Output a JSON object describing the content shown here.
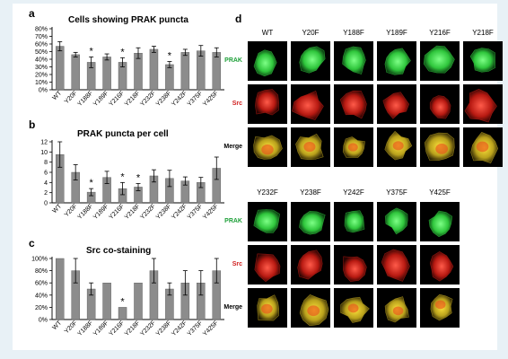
{
  "panels": {
    "a": "a",
    "b": "b",
    "c": "c",
    "d": "d"
  },
  "colors": {
    "bar": "#8c8c8c",
    "prak_label": "#1fa03a",
    "src_label": "#d01d1d",
    "merge_label": "#000000"
  },
  "chart_data": [
    {
      "type": "bar",
      "title": "Cells showing PRAK puncta",
      "categories": [
        "WT",
        "Y20F",
        "Y188F",
        "Y189F",
        "Y216F",
        "Y218F",
        "Y232F",
        "Y238F",
        "Y242F",
        "Y375F",
        "Y425F"
      ],
      "values": [
        57,
        46,
        36,
        43,
        36,
        48,
        53,
        33,
        49,
        51,
        49
      ],
      "errors": [
        6,
        3,
        7,
        4,
        6,
        7,
        4,
        4,
        4,
        7,
        6
      ],
      "significant": [
        false,
        false,
        true,
        false,
        true,
        false,
        false,
        true,
        false,
        false,
        false
      ],
      "yticks": [
        "0%",
        "10%",
        "20%",
        "30%",
        "40%",
        "50%",
        "60%",
        "70%",
        "80%"
      ],
      "ylim": [
        0,
        80
      ]
    },
    {
      "type": "bar",
      "title": "PRAK puncta per cell",
      "categories": [
        "WT",
        "Y20F",
        "Y188F",
        "Y189F",
        "Y216F",
        "Y218F",
        "Y232F",
        "Y238F",
        "Y242F",
        "Y375F",
        "Y425F"
      ],
      "values": [
        9.5,
        6.0,
        2.1,
        5.0,
        2.8,
        3.1,
        5.3,
        4.8,
        4.3,
        4.0,
        6.8
      ],
      "errors": [
        2.5,
        1.5,
        0.7,
        1.2,
        1.2,
        0.7,
        1.2,
        1.6,
        0.8,
        1.0,
        2.2
      ],
      "significant": [
        false,
        false,
        true,
        false,
        true,
        true,
        false,
        false,
        false,
        false,
        false
      ],
      "yticks": [
        "0",
        "2",
        "4",
        "6",
        "8",
        "10",
        "12"
      ],
      "ylim": [
        0,
        12
      ]
    },
    {
      "type": "bar",
      "title": "Src co-staining",
      "categories": [
        "WT",
        "Y20F",
        "Y188F",
        "Y189F",
        "Y216F",
        "Y218F",
        "Y232F",
        "Y238F",
        "Y242F",
        "Y375F",
        "Y425F"
      ],
      "values": [
        100,
        80,
        50,
        60,
        20,
        60,
        80,
        50,
        60,
        60,
        80
      ],
      "errors": [
        0,
        20,
        10,
        0,
        0,
        0,
        20,
        10,
        20,
        20,
        20
      ],
      "significant": [
        false,
        false,
        false,
        false,
        true,
        false,
        false,
        false,
        false,
        false,
        false
      ],
      "yticks": [
        "0%",
        "20%",
        "40%",
        "60%",
        "80%",
        "100%"
      ],
      "ylim": [
        0,
        100
      ]
    }
  ],
  "grid_top": {
    "columns": [
      "WT",
      "Y20F",
      "Y188F",
      "Y189F",
      "Y216F",
      "Y218F"
    ],
    "rows": [
      "PRAK",
      "Src",
      "Merge"
    ]
  },
  "grid_bottom": {
    "columns": [
      "Y232F",
      "Y238F",
      "Y242F",
      "Y375F",
      "Y425F"
    ],
    "rows": [
      "PRAK",
      "Src",
      "Merge"
    ]
  }
}
